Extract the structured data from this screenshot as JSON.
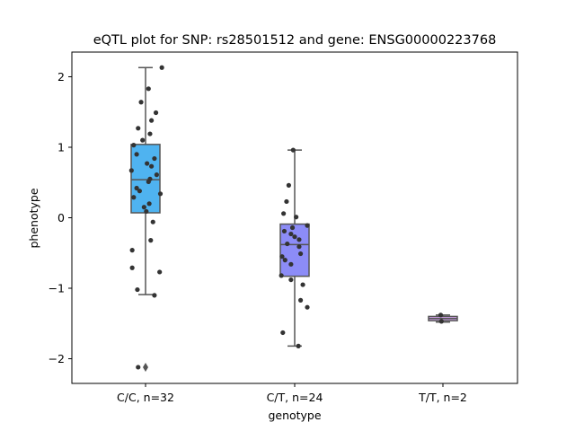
{
  "chart_data": {
    "type": "box",
    "title": "eQTL plot for SNP: rs28501512 and gene: ENSG00000223768",
    "xlabel": "genotype",
    "ylabel": "phenotype",
    "categories": [
      "C/C, n=32",
      "C/T, n=24",
      "T/T, n=2"
    ],
    "ylim": [
      -2.35,
      2.35
    ],
    "yticks": [
      2,
      1,
      0,
      -1,
      -2
    ],
    "ytick_labels": [
      "2",
      "1",
      "0",
      "−1",
      "−2"
    ],
    "grid": false,
    "boxes": [
      {
        "category": "C/C, n=32",
        "color": "#4fb3f0",
        "q1": 0.07,
        "median": 0.54,
        "q3": 1.04,
        "whisker_low": -1.09,
        "whisker_high": 2.13,
        "outliers": [
          -2.12
        ]
      },
      {
        "category": "C/T, n=24",
        "color": "#8c8cf7",
        "q1": -0.83,
        "median": -0.38,
        "q3": -0.09,
        "whisker_low": -1.82,
        "whisker_high": 0.96,
        "outliers": []
      },
      {
        "category": "T/T, n=2",
        "color": "#d9a6f2",
        "q1": -1.46,
        "median": -1.43,
        "q3": -1.4,
        "whisker_low": -1.48,
        "whisker_high": -1.38,
        "outliers": []
      }
    ],
    "points": [
      {
        "category": "C/C, n=32",
        "values": [
          2.13,
          1.83,
          1.64,
          1.49,
          1.38,
          1.27,
          1.19,
          1.1,
          1.03,
          0.9,
          0.84,
          0.77,
          0.73,
          0.67,
          0.61,
          0.55,
          0.51,
          0.42,
          0.38,
          0.34,
          0.29,
          0.2,
          0.15,
          0.09,
          -0.06,
          -0.32,
          -0.46,
          -0.71,
          -0.77,
          -1.02,
          -1.1,
          -2.12
        ],
        "jitter": [
          0.22,
          0.04,
          -0.06,
          0.14,
          0.08,
          -0.1,
          0.06,
          -0.04,
          -0.16,
          -0.12,
          0.12,
          0.02,
          0.08,
          -0.19,
          0.15,
          0.06,
          0.04,
          -0.12,
          -0.08,
          0.2,
          -0.16,
          0.05,
          -0.02,
          0.01,
          0.1,
          0.07,
          -0.18,
          -0.18,
          0.19,
          -0.11,
          0.12,
          -0.1
        ]
      },
      {
        "category": "C/T, n=24",
        "values": [
          0.96,
          0.46,
          0.23,
          0.06,
          0.01,
          -0.11,
          -0.14,
          -0.19,
          -0.23,
          -0.27,
          -0.31,
          -0.37,
          -0.41,
          -0.51,
          -0.55,
          -0.6,
          -0.66,
          -0.82,
          -0.88,
          -0.95,
          -1.17,
          -1.27,
          -1.63,
          -1.82
        ],
        "jitter": [
          -0.02,
          -0.08,
          -0.11,
          -0.15,
          0.02,
          0.17,
          -0.03,
          -0.14,
          -0.05,
          0.0,
          0.06,
          -0.1,
          0.06,
          0.08,
          -0.17,
          -0.13,
          -0.05,
          -0.18,
          -0.05,
          0.11,
          0.08,
          0.17,
          -0.16,
          0.05
        ]
      },
      {
        "category": "T/T, n=2",
        "values": [
          -1.38,
          -1.47
        ],
        "jitter": [
          -0.03,
          -0.02
        ]
      }
    ]
  }
}
